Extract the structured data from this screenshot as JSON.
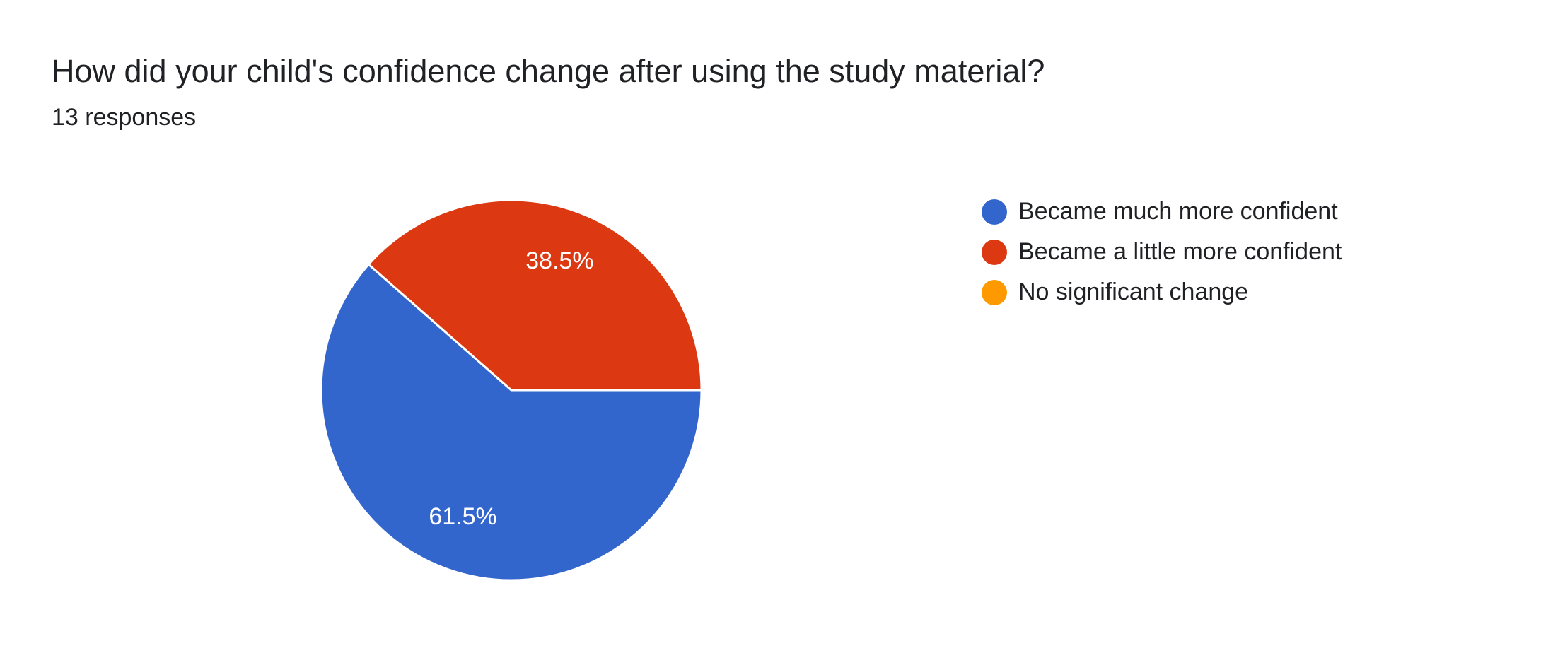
{
  "chart_data": {
    "type": "pie",
    "title": "How did your child's confidence change after using the study material?",
    "subtitle": "13 responses",
    "categories": [
      "Became much more confident",
      "Became a little more confident",
      "No significant change"
    ],
    "values": [
      61.5,
      38.5,
      0
    ],
    "value_labels": [
      "61.5%",
      "38.5%",
      null
    ],
    "colors": [
      "#3366cc",
      "#dc3912",
      "#ff9900"
    ],
    "legend": "right"
  }
}
